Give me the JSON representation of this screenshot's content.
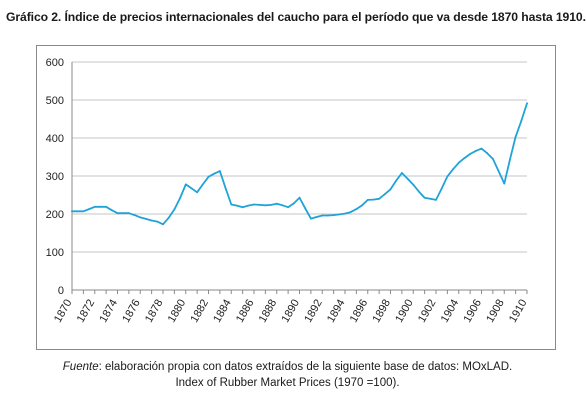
{
  "chart_data": {
    "type": "line",
    "title": "Gráfico 2. Índice de precios internacionales del caucho para el período que va desde 1870 hasta 1910.",
    "xlabel": "",
    "ylabel": "",
    "ylim": [
      0,
      600
    ],
    "yticks": [
      "0",
      "100",
      "200",
      "300",
      "400",
      "500",
      "600"
    ],
    "xticks": [
      "1870",
      "1872",
      "1874",
      "1876",
      "1878",
      "1880",
      "1882",
      "1884",
      "1886",
      "1888",
      "1890",
      "1892",
      "1894",
      "1896",
      "1898",
      "1900",
      "1902",
      "1904",
      "1906",
      "1908",
      "1910"
    ],
    "grid": true,
    "line_color": "#1fa3d8",
    "series": [
      {
        "x": [
          1870,
          1870.5,
          1871,
          1871.5,
          1872,
          1872.5,
          1873,
          1873.5,
          1874,
          1874.5,
          1875,
          1875.5,
          1876,
          1876.5,
          1877,
          1877.5,
          1878,
          1878.5,
          1879,
          1879.5,
          1880,
          1880.5,
          1881,
          1881.5,
          1882,
          1882.5,
          1883,
          1883.5,
          1884,
          1884.5,
          1885,
          1885.5,
          1886,
          1886.5,
          1887,
          1887.5,
          1888,
          1888.5,
          1889,
          1889.5,
          1890,
          1890.5,
          1891,
          1891.5,
          1892,
          1892.5,
          1893,
          1893.5,
          1894,
          1894.5,
          1895,
          1895.5,
          1896,
          1896.5,
          1897,
          1897.5,
          1898,
          1898.5,
          1899,
          1899.5,
          1900,
          1900.5,
          1901,
          1901.5,
          1902,
          1902.5,
          1903,
          1903.5,
          1904,
          1904.5,
          1905,
          1905.5,
          1906,
          1906.5,
          1907,
          1907.5,
          1908,
          1908.5,
          1909,
          1909.5,
          1910
        ],
        "values": [
          207,
          207,
          207,
          213,
          219,
          219,
          219,
          210,
          202,
          202,
          202,
          197,
          191,
          187,
          183,
          180,
          173,
          190,
          212,
          242,
          278,
          268,
          257,
          278,
          298,
          306,
          313,
          268,
          225,
          222,
          218,
          222,
          225,
          224,
          223,
          224,
          227,
          223,
          218,
          228,
          243,
          215,
          188,
          192,
          196,
          196,
          197,
          199,
          201,
          205,
          213,
          223,
          237,
          238,
          240,
          252,
          265,
          288,
          308,
          293,
          277,
          259,
          243,
          240,
          237,
          267,
          299,
          318,
          335,
          347,
          358,
          366,
          372,
          360,
          345,
          313,
          280,
          343,
          403,
          445,
          491
        ]
      }
    ]
  },
  "source": {
    "label": "Fuente",
    "line1": ": elaboración propia con datos extraídos de la siguiente base de datos: MOxLAD.",
    "line2": "Index of Rubber Market Prices (1970 =100)."
  }
}
